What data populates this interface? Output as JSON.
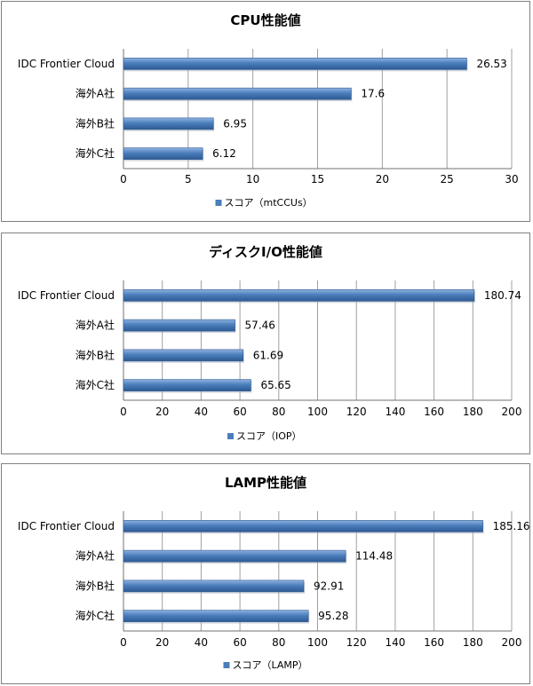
{
  "chart_data": [
    {
      "type": "bar",
      "orientation": "horizontal",
      "title": "CPU性能値",
      "categories": [
        "IDC Frontier Cloud",
        "海外A社",
        "海外B社",
        "海外C社"
      ],
      "series": [
        {
          "name": "スコア（mtCCUs）",
          "values": [
            26.53,
            17.6,
            6.95,
            6.12
          ]
        }
      ],
      "value_labels": [
        "26.53",
        "17.6",
        "6.95",
        "6.12"
      ],
      "xlim": [
        0,
        30
      ],
      "xticks": [
        0,
        5,
        10,
        15,
        20,
        25,
        30
      ],
      "grid": true,
      "legend_position": "bottom",
      "bar_color": "#4A7EBB"
    },
    {
      "type": "bar",
      "orientation": "horizontal",
      "title": "ディスクI/O性能値",
      "categories": [
        "IDC Frontier Cloud",
        "海外A社",
        "海外B社",
        "海外C社"
      ],
      "series": [
        {
          "name": "スコア（IOP）",
          "values": [
            180.74,
            57.46,
            61.69,
            65.65
          ]
        }
      ],
      "value_labels": [
        "180.74",
        "57.46",
        "61.69",
        "65.65"
      ],
      "xlim": [
        0,
        200
      ],
      "xticks": [
        0,
        20,
        40,
        60,
        80,
        100,
        120,
        140,
        160,
        180,
        200
      ],
      "grid": true,
      "legend_position": "bottom",
      "bar_color": "#4A7EBB"
    },
    {
      "type": "bar",
      "orientation": "horizontal",
      "title": "LAMP性能値",
      "categories": [
        "IDC Frontier Cloud",
        "海外A社",
        "海外B社",
        "海外C社"
      ],
      "series": [
        {
          "name": "スコア（LAMP）",
          "values": [
            185.16,
            114.48,
            92.91,
            95.28
          ]
        }
      ],
      "value_labels": [
        "185.16",
        "114.48",
        "92.91",
        "95.28"
      ],
      "xlim": [
        0,
        200
      ],
      "xticks": [
        0,
        20,
        40,
        60,
        80,
        100,
        120,
        140,
        160,
        180,
        200
      ],
      "grid": true,
      "legend_position": "bottom",
      "bar_color": "#4A7EBB"
    }
  ]
}
